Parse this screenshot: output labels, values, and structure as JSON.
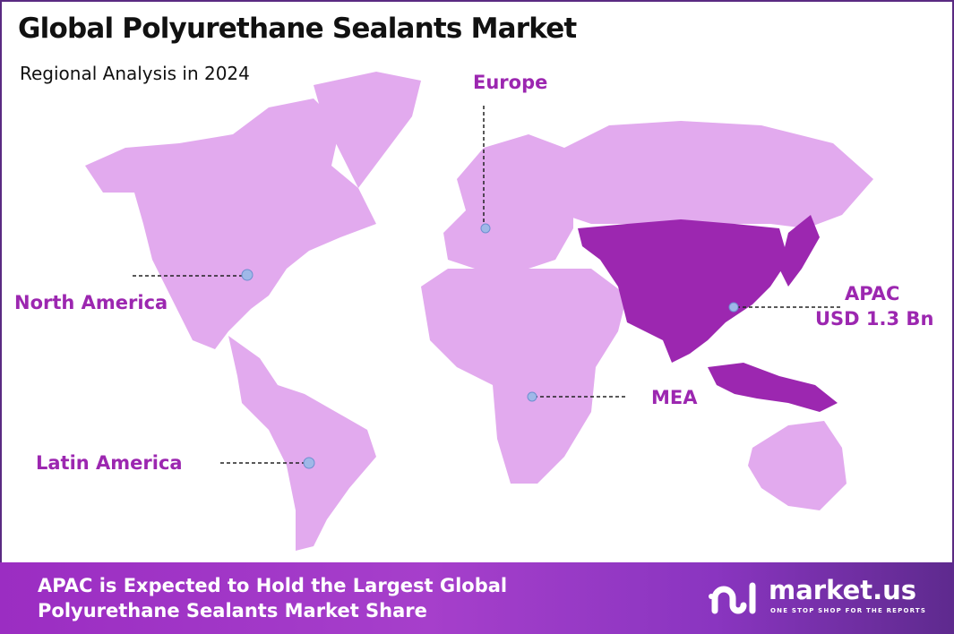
{
  "title": "Global Polyurethane Sealants Market",
  "subtitle": "Regional Analysis in 2024",
  "colors": {
    "base_region": "#e2aaee",
    "highlight_region": "#9c27b0",
    "label": "#9c27b0",
    "border": "#5a2a82",
    "marker": "#9fb8e8"
  },
  "regions": [
    {
      "name": "North America",
      "highlighted": false
    },
    {
      "name": "Europe",
      "highlighted": false
    },
    {
      "name": "APAC",
      "value": "USD 1.3 Bn",
      "highlighted": true
    },
    {
      "name": "MEA",
      "highlighted": false
    },
    {
      "name": "Latin America",
      "highlighted": false
    }
  ],
  "footer": {
    "line1": "APAC is Expected to Hold the Largest Global",
    "line2": "Polyurethane Sealants Market Share"
  },
  "logo": {
    "name": "market.us",
    "tagline": "ONE STOP SHOP FOR THE REPORTS",
    "icon": "market-us-logo-icon"
  }
}
